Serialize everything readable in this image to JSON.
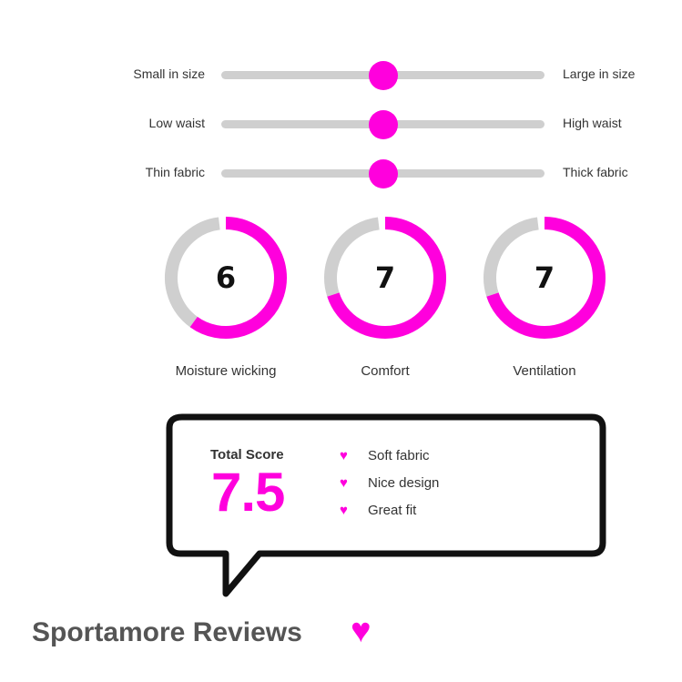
{
  "sliders": [
    {
      "left": "Small in size",
      "right": "Large in size",
      "value": 0.5
    },
    {
      "left": "Low waist",
      "right": "High waist",
      "value": 0.5
    },
    {
      "left": "Thin fabric",
      "right": "Thick fabric",
      "value": 0.5
    }
  ],
  "ratings": [
    {
      "label": "Moisture wicking",
      "value": "6",
      "max": 10
    },
    {
      "label": "Comfort",
      "value": "7",
      "max": 10
    },
    {
      "label": "Ventilation",
      "value": "7",
      "max": 10
    }
  ],
  "score": {
    "label": "Total Score",
    "value": "7.5"
  },
  "pros": [
    "Soft fabric",
    "Nice design",
    "Great fit"
  ],
  "footer": {
    "brand": "Sportamore Reviews",
    "icon": "heart-icon"
  },
  "colors": {
    "accent": "#ff00dd",
    "track": "#cfcfcf",
    "text": "#222222"
  }
}
